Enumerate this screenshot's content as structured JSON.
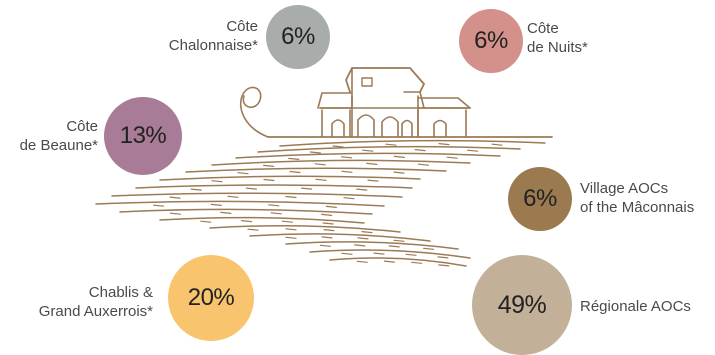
{
  "chart_data": {
    "type": "pie",
    "categories": [
      "Côte Chalonnaise*",
      "Côte de Nuits*",
      "Côte de Beaune*",
      "Village AOCs of the Mâconnais",
      "Chablis & Grand Auxerrois*",
      "Régionale AOCs"
    ],
    "values": [
      6,
      6,
      13,
      6,
      20,
      49
    ],
    "unit": "%"
  },
  "segments": [
    {
      "id": "cote-chalonnaise",
      "value_label": "6%",
      "label_lines": [
        "Côte",
        "Chalonnaise*"
      ],
      "color": "#a8acaa"
    },
    {
      "id": "cote-de-nuits",
      "value_label": "6%",
      "label_lines": [
        "Côte",
        "de Nuits*"
      ],
      "color": "#d4908a"
    },
    {
      "id": "cote-de-beaune",
      "value_label": "13%",
      "label_lines": [
        "Côte",
        "de Beaune*"
      ],
      "color": "#a87b96"
    },
    {
      "id": "village-maconnais",
      "value_label": "6%",
      "label_lines": [
        "Village AOCs",
        "of the Mâconnais"
      ],
      "color": "#9c7a50"
    },
    {
      "id": "chablis-auxerrois",
      "value_label": "20%",
      "label_lines": [
        "Chablis &",
        "Grand Auxerrois*"
      ],
      "color": "#f9c46e"
    },
    {
      "id": "regionale",
      "value_label": "49%",
      "label_lines": [
        "Régionale AOCs"
      ],
      "color": "#c2b198"
    }
  ],
  "illustration": {
    "line_color": "#9b7a56",
    "icon": "chateau-vineyard-icon"
  }
}
